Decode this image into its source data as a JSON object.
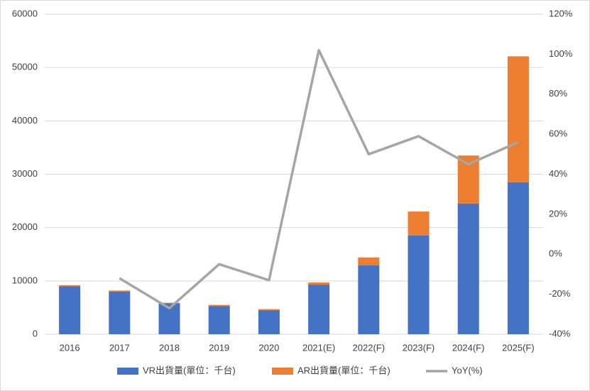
{
  "chart_data": {
    "type": "bar-line",
    "categories": [
      "2016",
      "2017",
      "2018",
      "2019",
      "2020",
      "2021(E)",
      "2022(F)",
      "2023(F)",
      "2024(F)",
      "2025(F)"
    ],
    "series": [
      {
        "name": "VR出貨量(單位：千台)",
        "type": "bar",
        "color": "#4472c4",
        "values": [
          9000,
          8000,
          5800,
          5300,
          4500,
          9300,
          12900,
          18500,
          24500,
          28500
        ]
      },
      {
        "name": "AR出貨量(單位：千台)",
        "type": "bar",
        "color": "#ed7d31",
        "values": [
          200,
          200,
          100,
          200,
          200,
          400,
          1500,
          4500,
          9000,
          23600
        ]
      },
      {
        "name": "YoY(%)",
        "type": "line",
        "axis": "y2",
        "color": "#a5a5a5",
        "values": [
          null,
          -12,
          -27,
          -5,
          -13,
          102,
          50,
          59,
          45,
          56
        ]
      }
    ],
    "stacked": true,
    "ylim": [
      0,
      60000
    ],
    "yticks": [
      0,
      10000,
      20000,
      30000,
      40000,
      50000,
      60000
    ],
    "y2lim": [
      -40,
      120
    ],
    "y2ticks": [
      {
        "value": -40,
        "label": "-40%"
      },
      {
        "value": -20,
        "label": "-20%"
      },
      {
        "value": 0,
        "label": "0%"
      },
      {
        "value": 20,
        "label": "20%"
      },
      {
        "value": 40,
        "label": "40%"
      },
      {
        "value": 60,
        "label": "60%"
      },
      {
        "value": 80,
        "label": "80%"
      },
      {
        "value": 100,
        "label": "100%"
      },
      {
        "value": 120,
        "label": "120%"
      }
    ],
    "grid": true,
    "legend": "bottom"
  }
}
